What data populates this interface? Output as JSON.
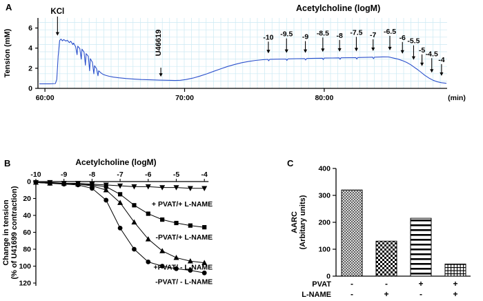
{
  "figure": {
    "panel_a_label": "A",
    "panel_b_label": "B",
    "panel_c_label": "C"
  },
  "colors": {
    "trace": "#2b50cc",
    "grid": "#cbe9f3",
    "axis": "#000000"
  },
  "chart_data": [
    {
      "id": "panel-a",
      "type": "line",
      "title": "Acetylcholine (logM)",
      "ylabel": "Tension (mM)",
      "x_unit_label": "(min)",
      "ylim": [
        0,
        7
      ],
      "yticks": [
        0,
        2,
        4,
        6
      ],
      "xlim": [
        59.5,
        88.8
      ],
      "xticks": [
        {
          "t": 60,
          "label": "60:00"
        },
        {
          "t": 70,
          "label": "70:00"
        },
        {
          "t": 80,
          "label": "80:00"
        }
      ],
      "kcl_label": "KCl",
      "kcl_time": 60.9,
      "u46619_label": "U46619",
      "u46619_time": 68.3,
      "ach_additions": [
        {
          "label": "-10",
          "t": 76.0
        },
        {
          "label": "-9.5",
          "t": 77.3
        },
        {
          "label": "-9",
          "t": 78.65
        },
        {
          "label": "-8.5",
          "t": 79.9
        },
        {
          "label": "-8",
          "t": 81.1
        },
        {
          "label": "-7.5",
          "t": 82.3
        },
        {
          "label": "-7",
          "t": 83.5
        },
        {
          "label": "-6.5",
          "t": 84.7
        },
        {
          "label": "-6",
          "t": 85.6
        },
        {
          "label": "-5.5",
          "t": 86.4
        },
        {
          "label": "-5",
          "t": 87.0
        },
        {
          "label": "-4.5",
          "t": 87.7
        },
        {
          "label": "-4",
          "t": 88.4
        }
      ],
      "trace_mM_vs_min": [
        [
          59.6,
          0.45
        ],
        [
          60.3,
          0.45
        ],
        [
          60.75,
          0.48
        ],
        [
          60.85,
          0.9
        ],
        [
          60.95,
          3.2
        ],
        [
          61.05,
          4.75
        ],
        [
          61.15,
          4.9
        ],
        [
          61.25,
          4.72
        ],
        [
          61.35,
          4.85
        ],
        [
          61.5,
          4.7
        ],
        [
          61.6,
          4.78
        ],
        [
          61.75,
          4.55
        ],
        [
          61.85,
          4.68
        ],
        [
          62.0,
          4.35
        ],
        [
          62.05,
          4.5
        ],
        [
          62.2,
          4.15
        ],
        [
          62.3,
          3.35
        ],
        [
          62.35,
          4.2
        ],
        [
          62.5,
          3.95
        ],
        [
          62.6,
          2.9
        ],
        [
          62.65,
          3.9
        ],
        [
          62.8,
          3.6
        ],
        [
          62.9,
          2.3
        ],
        [
          62.95,
          3.45
        ],
        [
          63.1,
          3.2
        ],
        [
          63.2,
          1.75
        ],
        [
          63.25,
          2.95
        ],
        [
          63.4,
          2.6
        ],
        [
          63.5,
          1.45
        ],
        [
          63.55,
          2.25
        ],
        [
          63.7,
          1.95
        ],
        [
          63.8,
          1.25
        ],
        [
          63.85,
          1.75
        ],
        [
          64.0,
          1.55
        ],
        [
          64.15,
          1.4
        ],
        [
          64.35,
          1.3
        ],
        [
          64.6,
          1.2
        ],
        [
          64.9,
          1.12
        ],
        [
          65.3,
          1.05
        ],
        [
          65.8,
          0.98
        ],
        [
          66.3,
          0.93
        ],
        [
          66.9,
          0.88
        ],
        [
          67.5,
          0.85
        ],
        [
          68.2,
          0.82
        ],
        [
          68.8,
          0.8
        ],
        [
          69.3,
          0.78
        ],
        [
          69.7,
          0.8
        ],
        [
          70.1,
          0.88
        ],
        [
          70.6,
          1.02
        ],
        [
          71.1,
          1.22
        ],
        [
          71.6,
          1.45
        ],
        [
          72.1,
          1.7
        ],
        [
          72.6,
          1.95
        ],
        [
          73.1,
          2.18
        ],
        [
          73.6,
          2.38
        ],
        [
          74.1,
          2.55
        ],
        [
          74.6,
          2.68
        ],
        [
          75.1,
          2.78
        ],
        [
          75.6,
          2.85
        ],
        [
          75.97,
          2.88
        ],
        [
          76.02,
          2.74
        ],
        [
          76.1,
          2.89
        ],
        [
          76.6,
          2.9
        ],
        [
          77.27,
          2.92
        ],
        [
          77.32,
          2.78
        ],
        [
          77.4,
          2.93
        ],
        [
          78.0,
          2.95
        ],
        [
          78.6,
          2.96
        ],
        [
          78.66,
          2.82
        ],
        [
          78.75,
          2.97
        ],
        [
          79.4,
          2.99
        ],
        [
          79.87,
          3.0
        ],
        [
          79.93,
          2.86
        ],
        [
          80.0,
          3.01
        ],
        [
          80.6,
          3.02
        ],
        [
          81.07,
          3.03
        ],
        [
          81.13,
          2.89
        ],
        [
          81.2,
          3.04
        ],
        [
          81.8,
          3.05
        ],
        [
          82.27,
          3.06
        ],
        [
          82.33,
          2.92
        ],
        [
          82.4,
          3.07
        ],
        [
          83.0,
          3.08
        ],
        [
          83.47,
          3.1
        ],
        [
          83.53,
          2.96
        ],
        [
          83.6,
          3.1
        ],
        [
          84.2,
          3.13
        ],
        [
          84.6,
          3.12
        ],
        [
          84.75,
          3.08
        ],
        [
          85.0,
          3.0
        ],
        [
          85.3,
          2.9
        ],
        [
          85.6,
          2.76
        ],
        [
          85.9,
          2.58
        ],
        [
          86.2,
          2.35
        ],
        [
          86.45,
          2.1
        ],
        [
          86.7,
          1.85
        ],
        [
          86.95,
          1.58
        ],
        [
          87.2,
          1.3
        ],
        [
          87.5,
          1.02
        ],
        [
          87.8,
          0.8
        ],
        [
          88.1,
          0.65
        ],
        [
          88.4,
          0.56
        ],
        [
          88.75,
          0.5
        ]
      ]
    },
    {
      "id": "panel-b",
      "type": "line",
      "xlabel_top": "Acetylcholine (logM)",
      "ylabel_line1": "Change in tension",
      "ylabel_line2": "(% of U41699 contraction)",
      "xticks": [
        -10,
        -9,
        -8,
        -7,
        -6,
        -5,
        -4
      ],
      "yticks": [
        0,
        20,
        40,
        60,
        80,
        100,
        120
      ],
      "ylim": [
        0,
        120
      ],
      "y_axis_inverted": true,
      "x": [
        -10,
        -9.5,
        -9,
        -8.5,
        -8,
        -7.5,
        -7,
        -6.5,
        -6,
        -5.5,
        -5,
        -4.5,
        -4
      ],
      "series": [
        {
          "name": "+ PVAT/+ L-NAME",
          "marker": "triangle-down",
          "values": [
            1,
            1,
            2,
            2,
            3,
            4,
            5,
            6,
            6,
            7,
            7,
            8,
            8
          ]
        },
        {
          "name": "-PVAT/+ L-NAME",
          "marker": "square",
          "values": [
            1,
            2,
            2,
            3,
            4,
            6,
            15,
            28,
            38,
            45,
            49,
            52,
            54
          ]
        },
        {
          "name": "+PVAT/ - L-NAME",
          "marker": "triangle-up",
          "values": [
            1,
            2,
            2,
            3,
            5,
            10,
            25,
            48,
            68,
            82,
            90,
            94,
            96
          ]
        },
        {
          "name": "-PVAT/ - L-NAME",
          "marker": "circle",
          "values": [
            1,
            2,
            3,
            4,
            8,
            22,
            55,
            80,
            95,
            100,
            103,
            105,
            108
          ]
        }
      ]
    },
    {
      "id": "panel-c",
      "type": "bar",
      "ylabel_line1": "AARC",
      "ylabel_line2": "(Arbitary units)",
      "ylim": [
        0,
        400
      ],
      "yticks": [
        0,
        100,
        200,
        300,
        400
      ],
      "values": [
        320,
        130,
        215,
        45
      ],
      "bar_patterns": [
        "diag-crosshatch",
        "checkerboard",
        "horizontal-lines",
        "fine-grid"
      ],
      "group_rows": [
        {
          "label": "PVAT",
          "signs": [
            "-",
            "-",
            "+",
            "+"
          ]
        },
        {
          "label": "L-NAME",
          "signs": [
            "-",
            "+",
            "-",
            "+"
          ]
        }
      ]
    }
  ]
}
